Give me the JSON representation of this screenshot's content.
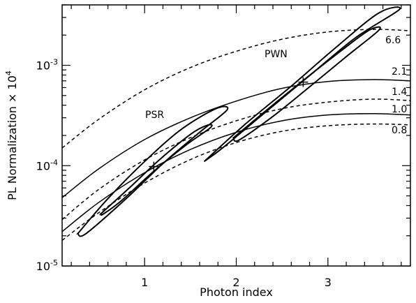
{
  "chart_data": {
    "type": "line",
    "xlabel": "Photon index",
    "ylabel_parts": {
      "main": "PL Normalization × 10",
      "superscript": "4"
    },
    "xlim": [
      0.1,
      3.9
    ],
    "ylim": [
      1e-05,
      0.004
    ],
    "y_scale": "log",
    "grid": false,
    "x_ticks": [
      {
        "value": 1,
        "label": "1"
      },
      {
        "value": 2,
        "label": "2"
      },
      {
        "value": 3,
        "label": "3"
      }
    ],
    "y_ticks": [
      {
        "value": 1e-05,
        "base": "10",
        "exp": "-5"
      },
      {
        "value": 0.0001,
        "base": "10",
        "exp": "-4"
      },
      {
        "value": 0.001,
        "base": "10",
        "exp": "-3"
      }
    ],
    "curves": [
      {
        "label": "6.6",
        "style": "dashed",
        "points": [
          [
            0.1,
            0.00015
          ],
          [
            0.5,
            0.00029
          ],
          [
            1.0,
            0.00057
          ],
          [
            1.5,
            0.00095
          ],
          [
            2.0,
            0.00138
          ],
          [
            2.5,
            0.00182
          ],
          [
            3.0,
            0.00215
          ],
          [
            3.5,
            0.00228
          ],
          [
            3.9,
            0.00221
          ]
        ]
      },
      {
        "label": "2.1",
        "style": "solid",
        "points": [
          [
            0.1,
            4.8e-05
          ],
          [
            0.5,
            9.3e-05
          ],
          [
            1.0,
            0.000182
          ],
          [
            1.5,
            0.0003
          ],
          [
            2.0,
            0.00044
          ],
          [
            2.5,
            0.00059
          ],
          [
            3.0,
            0.00069
          ],
          [
            3.5,
            0.00072
          ],
          [
            3.9,
            0.0007
          ]
        ]
      },
      {
        "label": "1.4",
        "style": "dashed",
        "points": [
          [
            0.1,
            2.9e-05
          ],
          [
            0.5,
            5.8e-05
          ],
          [
            1.0,
            0.000114
          ],
          [
            1.5,
            0.00019
          ],
          [
            2.0,
            0.00028
          ],
          [
            2.5,
            0.00037
          ],
          [
            3.0,
            0.00043
          ],
          [
            3.5,
            0.00046
          ],
          [
            3.9,
            0.000445
          ]
        ]
      },
      {
        "label": "1.0",
        "style": "solid",
        "points": [
          [
            0.1,
            2.2e-05
          ],
          [
            0.5,
            4.3e-05
          ],
          [
            1.0,
            8.5e-05
          ],
          [
            1.5,
            0.000145
          ],
          [
            2.0,
            0.000215
          ],
          [
            2.5,
            0.00028
          ],
          [
            3.0,
            0.00032
          ],
          [
            3.5,
            0.00033
          ],
          [
            3.9,
            0.00032
          ]
        ]
      },
      {
        "label": "0.8",
        "style": "dashed",
        "points": [
          [
            0.1,
            1.8e-05
          ],
          [
            0.5,
            3.4e-05
          ],
          [
            1.0,
            6.7e-05
          ],
          [
            1.5,
            0.000115
          ],
          [
            2.0,
            0.00017
          ],
          [
            2.5,
            0.00022
          ],
          [
            3.0,
            0.00025
          ],
          [
            3.5,
            0.00026
          ],
          [
            3.9,
            0.000255
          ]
        ]
      }
    ],
    "regions": [
      {
        "label": "PSR",
        "best_fit": [
          1.1,
          9.8e-05
        ],
        "contours": [
          [
            [
              0.27,
              2.1e-05
            ],
            [
              0.6,
              4.7e-05
            ],
            [
              1.0,
              0.00011
            ],
            [
              1.4,
              0.00023
            ],
            [
              1.78,
              0.00037
            ],
            [
              1.9,
              0.00036
            ],
            [
              1.6,
              0.000215
            ],
            [
              1.2,
              0.000105
            ],
            [
              0.8,
              4.7e-05
            ],
            [
              0.36,
              2.1e-05
            ],
            [
              0.27,
              2.1e-05
            ]
          ],
          [
            [
              0.52,
              3.3e-05
            ],
            [
              0.85,
              6.2e-05
            ],
            [
              1.15,
              0.000112
            ],
            [
              1.5,
              0.000205
            ],
            [
              1.68,
              0.000252
            ],
            [
              1.72,
              0.00024
            ],
            [
              1.45,
              0.00016
            ],
            [
              1.1,
              8.8e-05
            ],
            [
              0.75,
              4.5e-05
            ],
            [
              0.55,
              3.3e-05
            ],
            [
              0.52,
              3.3e-05
            ]
          ]
        ]
      },
      {
        "label": "PWN",
        "best_fit": [
          2.73,
          0.00068
        ],
        "contours": [
          [
            [
              1.65,
              0.00011
            ],
            [
              2.1,
              0.00026
            ],
            [
              2.6,
              0.00062
            ],
            [
              3.05,
              0.00141
            ],
            [
              3.55,
              0.0033
            ],
            [
              3.78,
              0.0036
            ],
            [
              3.3,
              0.00188
            ],
            [
              2.8,
              0.00079
            ],
            [
              2.3,
              0.00033
            ],
            [
              1.85,
              0.00015
            ],
            [
              1.65,
              0.00011
            ]
          ],
          [
            [
              1.97,
              0.00019
            ],
            [
              2.35,
              0.00037
            ],
            [
              2.75,
              0.00073
            ],
            [
              3.15,
              0.00141
            ],
            [
              3.45,
              0.00224
            ],
            [
              3.56,
              0.00226
            ],
            [
              3.2,
              0.00122
            ],
            [
              2.8,
              0.00061
            ],
            [
              2.4,
              0.00031
            ],
            [
              2.03,
              0.00018
            ],
            [
              1.97,
              0.00019
            ]
          ]
        ]
      }
    ]
  }
}
